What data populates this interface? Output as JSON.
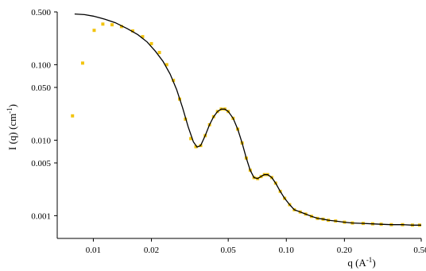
{
  "chart_data": {
    "type": "scatter",
    "title": "",
    "xlabel": "q (A",
    "xlabel_sup": "-1",
    "xlabel_end": ")",
    "ylabel": "I (q) (cm",
    "ylabel_sup": "-1",
    "ylabel_end": ")",
    "x_scale": "log",
    "y_scale": "log",
    "xlim": [
      0.0065,
      0.5
    ],
    "ylim": [
      0.0005,
      0.5
    ],
    "x_ticks": [
      0.01,
      0.02,
      0.05,
      0.1,
      0.2,
      0.5
    ],
    "x_tick_labels": [
      "0.01",
      "0.02",
      "0.05",
      "0.10",
      "0.20",
      "0.50"
    ],
    "y_ticks": [
      0.5,
      0.1,
      0.05,
      0.01,
      0.005,
      0.001
    ],
    "y_tick_labels": [
      "0.500",
      "0.100",
      "0.050",
      "0.010",
      "0.005",
      "0.001"
    ],
    "grid": false,
    "series": [
      {
        "kind": "points",
        "color": "#f2c40f",
        "points": [
          [
            0.0078,
            0.021
          ],
          [
            0.0088,
            0.105
          ],
          [
            0.0101,
            0.285
          ],
          [
            0.0112,
            0.345
          ],
          [
            0.0125,
            0.338
          ],
          [
            0.014,
            0.32
          ],
          [
            0.016,
            0.28
          ],
          [
            0.018,
            0.235
          ],
          [
            0.02,
            0.19
          ],
          [
            0.022,
            0.145
          ],
          [
            0.024,
            0.1
          ],
          [
            0.026,
            0.062
          ],
          [
            0.028,
            0.035
          ],
          [
            0.03,
            0.019
          ],
          [
            0.032,
            0.0105
          ],
          [
            0.034,
            0.0082
          ],
          [
            0.036,
            0.0085
          ],
          [
            0.038,
            0.0115
          ],
          [
            0.04,
            0.016
          ],
          [
            0.042,
            0.0205
          ],
          [
            0.044,
            0.024
          ],
          [
            0.046,
            0.0258
          ],
          [
            0.048,
            0.0258
          ],
          [
            0.05,
            0.024
          ],
          [
            0.053,
            0.0195
          ],
          [
            0.056,
            0.014
          ],
          [
            0.059,
            0.0092
          ],
          [
            0.062,
            0.0058
          ],
          [
            0.065,
            0.004
          ],
          [
            0.068,
            0.0032
          ],
          [
            0.071,
            0.0031
          ],
          [
            0.074,
            0.0033
          ],
          [
            0.077,
            0.0035
          ],
          [
            0.08,
            0.0035
          ],
          [
            0.084,
            0.0032
          ],
          [
            0.088,
            0.0027
          ],
          [
            0.093,
            0.0021
          ],
          [
            0.098,
            0.0017
          ],
          [
            0.104,
            0.0014
          ],
          [
            0.11,
            0.0012
          ],
          [
            0.118,
            0.00112
          ],
          [
            0.126,
            0.00105
          ],
          [
            0.135,
            0.00098
          ],
          [
            0.145,
            0.00092
          ],
          [
            0.155,
            0.0009
          ],
          [
            0.165,
            0.00087
          ],
          [
            0.18,
            0.00085
          ],
          [
            0.2,
            0.00082
          ],
          [
            0.22,
            0.0008
          ],
          [
            0.25,
            0.00079
          ],
          [
            0.28,
            0.00078
          ],
          [
            0.31,
            0.00077
          ],
          [
            0.35,
            0.00076
          ],
          [
            0.4,
            0.00076
          ],
          [
            0.45,
            0.00075
          ],
          [
            0.49,
            0.00075
          ]
        ]
      },
      {
        "kind": "fit",
        "color": "#000000",
        "points": [
          [
            0.008,
            0.47
          ],
          [
            0.009,
            0.46
          ],
          [
            0.01,
            0.44
          ],
          [
            0.0115,
            0.4
          ],
          [
            0.013,
            0.36
          ],
          [
            0.015,
            0.3
          ],
          [
            0.017,
            0.25
          ],
          [
            0.019,
            0.2
          ],
          [
            0.021,
            0.15
          ],
          [
            0.023,
            0.11
          ],
          [
            0.025,
            0.075
          ],
          [
            0.027,
            0.047
          ],
          [
            0.029,
            0.027
          ],
          [
            0.031,
            0.015
          ],
          [
            0.033,
            0.0095
          ],
          [
            0.0345,
            0.0081
          ],
          [
            0.036,
            0.0085
          ],
          [
            0.038,
            0.0115
          ],
          [
            0.04,
            0.016
          ],
          [
            0.042,
            0.0205
          ],
          [
            0.044,
            0.024
          ],
          [
            0.046,
            0.0258
          ],
          [
            0.048,
            0.0258
          ],
          [
            0.05,
            0.024
          ],
          [
            0.053,
            0.0195
          ],
          [
            0.056,
            0.014
          ],
          [
            0.059,
            0.0092
          ],
          [
            0.062,
            0.0058
          ],
          [
            0.065,
            0.004
          ],
          [
            0.068,
            0.0032
          ],
          [
            0.071,
            0.0031
          ],
          [
            0.074,
            0.0033
          ],
          [
            0.077,
            0.0035
          ],
          [
            0.08,
            0.0035
          ],
          [
            0.084,
            0.0032
          ],
          [
            0.088,
            0.0027
          ],
          [
            0.093,
            0.0021
          ],
          [
            0.098,
            0.0017
          ],
          [
            0.104,
            0.0014
          ],
          [
            0.11,
            0.0012
          ],
          [
            0.118,
            0.00112
          ],
          [
            0.126,
            0.00105
          ],
          [
            0.135,
            0.00098
          ],
          [
            0.145,
            0.00092
          ],
          [
            0.155,
            0.0009
          ],
          [
            0.165,
            0.00087
          ],
          [
            0.18,
            0.00085
          ],
          [
            0.2,
            0.00082
          ],
          [
            0.22,
            0.0008
          ],
          [
            0.25,
            0.00079
          ],
          [
            0.28,
            0.00078
          ],
          [
            0.31,
            0.00077
          ],
          [
            0.35,
            0.00076
          ],
          [
            0.4,
            0.00076
          ],
          [
            0.45,
            0.00075
          ],
          [
            0.5,
            0.00075
          ]
        ]
      }
    ]
  }
}
